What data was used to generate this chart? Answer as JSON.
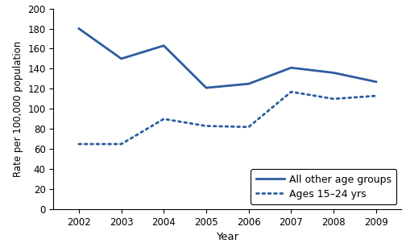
{
  "years": [
    2002,
    2003,
    2004,
    2005,
    2006,
    2007,
    2008,
    2009
  ],
  "all_other_age_groups": [
    180,
    150,
    163,
    121,
    125,
    141,
    136,
    127
  ],
  "ages_15_24": [
    65,
    65,
    90,
    83,
    82,
    117,
    110,
    113
  ],
  "line_color": "#2b5c9e",
  "ylabel": "Rate per 100,000 population",
  "xlabel": "Year",
  "ylim": [
    0,
    200
  ],
  "yticks": [
    0,
    20,
    40,
    60,
    80,
    100,
    120,
    140,
    160,
    180,
    200
  ],
  "legend_solid": "All other age groups",
  "legend_dashed": "Ages 15–24 yrs",
  "bg_color": "#ffffff",
  "tick_fontsize": 8.5,
  "label_fontsize": 9.5,
  "legend_fontsize": 9
}
